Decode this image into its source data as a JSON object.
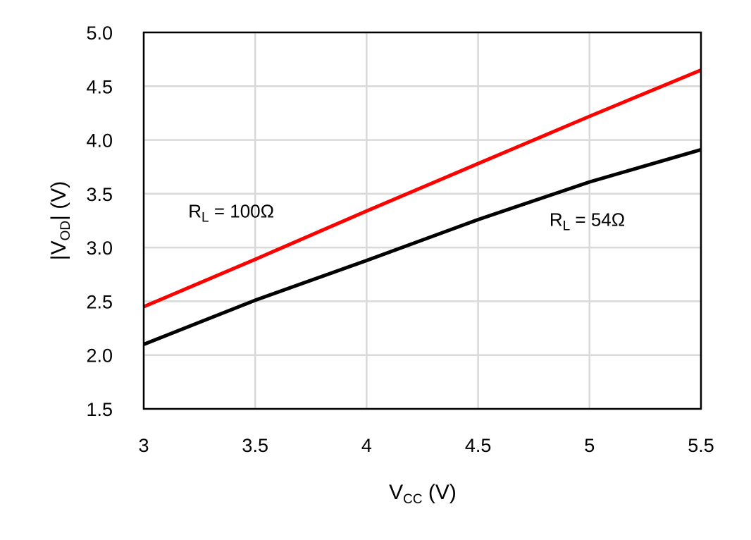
{
  "chart_data": {
    "type": "line",
    "xlabel": {
      "main": "V",
      "sub": "CC",
      "unit": " (V)"
    },
    "ylabel": {
      "pre": "|V",
      "sub": "OD",
      "post": "| (V)"
    },
    "xlim": [
      3,
      5.5
    ],
    "ylim": [
      1.5,
      5.0
    ],
    "xticks": [
      "3",
      "3.5",
      "4",
      "4.5",
      "5",
      "5.5"
    ],
    "xtick_values": [
      3,
      3.5,
      4,
      4.5,
      5,
      5.5
    ],
    "yticks": [
      "1.5",
      "2.0",
      "2.5",
      "3.0",
      "3.5",
      "4.0",
      "4.5",
      "5.0"
    ],
    "ytick_values": [
      1.5,
      2.0,
      2.5,
      3.0,
      3.5,
      4.0,
      4.5,
      5.0
    ],
    "grid": true,
    "series": [
      {
        "name": "RL = 100Ω",
        "color": "#ff0000",
        "x": [
          3.0,
          3.5,
          4.0,
          4.5,
          5.0,
          5.5
        ],
        "y": [
          2.45,
          2.89,
          3.34,
          3.78,
          4.22,
          4.65
        ]
      },
      {
        "name": "RL = 54Ω",
        "color": "#000000",
        "x": [
          3.0,
          3.5,
          4.0,
          4.5,
          5.0,
          5.5
        ],
        "y": [
          2.1,
          2.51,
          2.88,
          3.26,
          3.61,
          3.91
        ]
      }
    ],
    "annotations": [
      {
        "main": "R",
        "sub": "L",
        "rest": " = 100Ω",
        "x": 3.2,
        "y": 3.28
      },
      {
        "main": "R",
        "sub": "L",
        "rest": " = 54Ω",
        "x": 4.82,
        "y": 3.2
      }
    ]
  }
}
